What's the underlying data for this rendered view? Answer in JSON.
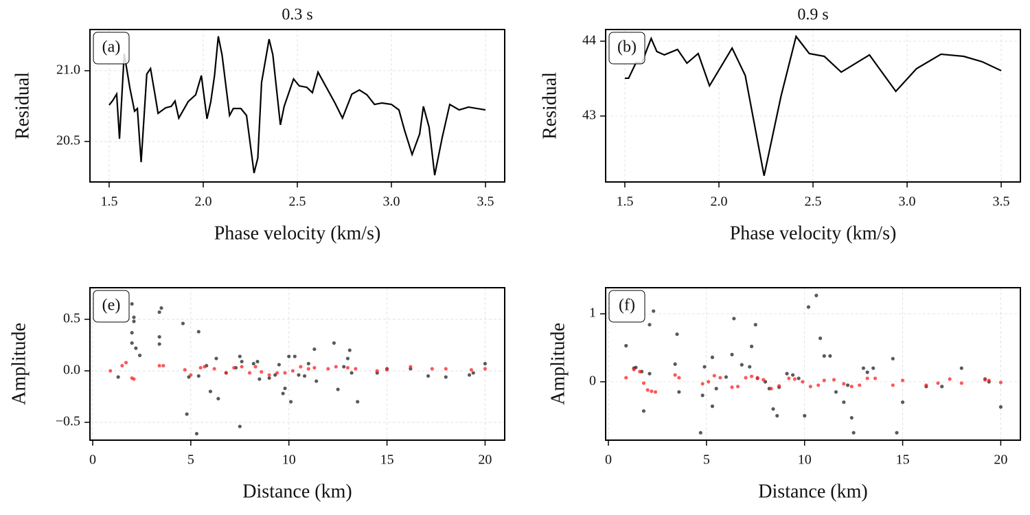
{
  "chart_data": [
    {
      "type": "line",
      "title": "0.3 s",
      "annotation": "(a)",
      "xlabel": "Phase velocity (km/s)",
      "ylabel": "Residual",
      "color": "#000000",
      "grid": true,
      "xlim": [
        1.398,
        3.602
      ],
      "ylim": [
        20.214,
        21.291
      ],
      "xticks": [
        1.5,
        {
          "value": 2,
          "label": "2.0"
        },
        2.5,
        {
          "value": 3,
          "label": "3.0"
        },
        3.5
      ],
      "yticks": [
        20.5,
        {
          "value": 21,
          "label": "21.0"
        }
      ],
      "x": [
        1.5,
        1.52,
        1.54,
        1.555,
        1.58,
        1.61,
        1.635,
        1.65,
        1.67,
        1.7,
        1.72,
        1.745,
        1.76,
        1.8,
        1.83,
        1.85,
        1.87,
        1.92,
        1.96,
        1.99,
        2.02,
        2.04,
        2.06,
        2.08,
        2.1,
        2.14,
        2.16,
        2.2,
        2.23,
        2.27,
        2.29,
        2.31,
        2.35,
        2.37,
        2.41,
        2.43,
        2.48,
        2.51,
        2.55,
        2.58,
        2.61,
        2.65,
        2.7,
        2.74,
        2.79,
        2.83,
        2.87,
        2.91,
        2.95,
        3.0,
        3.04,
        3.07,
        3.11,
        3.15,
        3.17,
        3.2,
        3.23,
        3.27,
        3.31,
        3.36,
        3.41,
        3.5
      ],
      "values": [
        20.757,
        20.791,
        20.835,
        20.519,
        21.121,
        20.879,
        20.714,
        20.733,
        20.354,
        20.976,
        21.015,
        20.82,
        20.699,
        20.738,
        20.748,
        20.786,
        20.665,
        20.782,
        20.83,
        20.966,
        20.66,
        20.78,
        20.966,
        21.243,
        21.112,
        20.684,
        20.733,
        20.733,
        20.684,
        20.277,
        20.383,
        20.917,
        21.223,
        21.112,
        20.617,
        20.748,
        20.942,
        20.893,
        20.883,
        20.845,
        20.99,
        20.893,
        20.772,
        20.665,
        20.835,
        20.864,
        20.83,
        20.762,
        20.772,
        20.762,
        20.723,
        20.578,
        20.408,
        20.553,
        20.748,
        20.602,
        20.262,
        20.529,
        20.762,
        20.723,
        20.743,
        20.723
      ]
    },
    {
      "type": "line",
      "title": "0.9 s",
      "annotation": "(b)",
      "xlabel": "Phase velocity (km/s)",
      "ylabel": "Residual",
      "color": "#000000",
      "grid": true,
      "xlim": [
        1.398,
        3.602
      ],
      "ylim": [
        42.119,
        44.156
      ],
      "xticks": [
        1.5,
        {
          "value": 2,
          "label": "2.0"
        },
        2.5,
        {
          "value": 3,
          "label": "3.0"
        },
        3.5
      ],
      "yticks": [
        43,
        44
      ],
      "x": [
        1.5,
        1.52,
        1.56,
        1.59,
        1.62,
        1.64,
        1.67,
        1.71,
        1.78,
        1.83,
        1.89,
        1.95,
        2.07,
        2.14,
        2.24,
        2.33,
        2.41,
        2.48,
        2.56,
        2.65,
        2.8,
        2.94,
        3.05,
        3.18,
        3.3,
        3.4,
        3.5
      ],
      "values": [
        43.505,
        43.505,
        43.716,
        43.706,
        43.908,
        44.037,
        43.862,
        43.817,
        43.89,
        43.706,
        43.835,
        43.404,
        43.908,
        43.541,
        42.202,
        43.266,
        44.064,
        43.835,
        43.798,
        43.587,
        43.817,
        43.33,
        43.633,
        43.826,
        43.798,
        43.725,
        43.606
      ]
    },
    {
      "type": "scatter",
      "annotation": "(e)",
      "xlabel": "Distance (km)",
      "ylabel": "Amplitude",
      "grid": true,
      "xlim": [
        -0.14,
        21.0
      ],
      "ylim": [
        -0.673,
        0.807
      ],
      "xticks": [
        0,
        5,
        10,
        15,
        20
      ],
      "yticks": [
        {
          "value": -0.5,
          "label": "−0.5"
        },
        {
          "value": 0,
          "label": "0.0"
        },
        0.5
      ],
      "series": [
        {
          "color": "#222222",
          "x": [
            1.3,
            2.0,
            2.1,
            2.1,
            2.0,
            2.0,
            2.2,
            2.4,
            3.5,
            3.4,
            3.4,
            3.4,
            4.6,
            4.8,
            4.9,
            5.3,
            5.4,
            5.4,
            5.8,
            6.0,
            6.3,
            6.4,
            6.8,
            7.3,
            7.5,
            7.5,
            7.6,
            8.2,
            8.4,
            8.5,
            9.0,
            9.3,
            9.5,
            9.7,
            9.8,
            10.1,
            10.0,
            10.3,
            10.5,
            10.8,
            11.0,
            11.3,
            11.4,
            12.3,
            12.5,
            12.8,
            13.0,
            13.1,
            13.2,
            13.5,
            14.5,
            15.0,
            16.2,
            17.1,
            18.0,
            19.2,
            19.4,
            20.0
          ],
          "values": [
            -0.06,
            0.65,
            0.52,
            0.48,
            0.37,
            0.27,
            0.22,
            0.15,
            0.61,
            0.57,
            0.33,
            0.26,
            0.46,
            -0.42,
            -0.06,
            -0.61,
            0.38,
            -0.05,
            0.05,
            -0.2,
            0.12,
            -0.27,
            -0.02,
            0.03,
            0.14,
            -0.54,
            0.09,
            0.07,
            0.09,
            -0.08,
            -0.07,
            -0.04,
            0.06,
            -0.22,
            -0.17,
            -0.3,
            0.14,
            0.14,
            -0.04,
            -0.05,
            0.07,
            0.21,
            -0.1,
            0.27,
            -0.18,
            0.04,
            0.12,
            0.2,
            -0.02,
            -0.3,
            -0.02,
            0.02,
            0.02,
            -0.05,
            -0.06,
            -0.04,
            -0.02,
            0.07
          ]
        },
        {
          "color": "#ff2020",
          "x": [
            0.9,
            1.5,
            1.7,
            2.0,
            2.1,
            3.4,
            3.6,
            4.7,
            5.0,
            5.5,
            5.7,
            6.2,
            6.8,
            7.2,
            7.6,
            8.0,
            8.3,
            8.6,
            9.0,
            9.4,
            9.8,
            10.2,
            10.6,
            11.0,
            11.3,
            12.0,
            12.4,
            13.0,
            13.4,
            14.5,
            15.0,
            16.2,
            17.3,
            18.0,
            19.3,
            20.0
          ],
          "values": [
            0.0,
            0.05,
            0.08,
            -0.07,
            -0.08,
            0.05,
            0.05,
            0.01,
            -0.04,
            0.03,
            0.04,
            0.02,
            -0.02,
            0.03,
            0.04,
            -0.02,
            0.04,
            -0.01,
            -0.04,
            -0.02,
            -0.02,
            0.0,
            0.04,
            0.02,
            0.03,
            0.02,
            0.04,
            0.03,
            0.02,
            0.0,
            0.01,
            0.04,
            0.02,
            0.02,
            0.01,
            0.02
          ]
        }
      ]
    },
    {
      "type": "scatter",
      "annotation": "(f)",
      "xlabel": "Distance (km)",
      "ylabel": "Amplitude",
      "grid": true,
      "xlim": [
        -0.14,
        21.0
      ],
      "ylim": [
        -0.859,
        1.384
      ],
      "xticks": [
        0,
        5,
        10,
        15,
        20
      ],
      "yticks": [
        0,
        1
      ],
      "series": [
        {
          "color": "#222222",
          "x": [
            0.9,
            1.3,
            1.4,
            1.7,
            1.8,
            2.1,
            2.1,
            2.3,
            3.4,
            3.5,
            3.6,
            4.7,
            4.8,
            4.9,
            5.3,
            5.3,
            5.5,
            6.0,
            6.3,
            6.4,
            6.8,
            7.2,
            7.3,
            7.5,
            7.6,
            8.0,
            8.2,
            8.4,
            8.6,
            8.7,
            9.1,
            9.4,
            9.7,
            10.0,
            10.2,
            10.6,
            10.8,
            11.0,
            11.3,
            11.6,
            12.0,
            12.2,
            12.4,
            12.5,
            13.0,
            13.2,
            13.5,
            14.5,
            14.7,
            15.0,
            16.2,
            17.0,
            18.0,
            19.2,
            19.4,
            20.0
          ],
          "values": [
            0.53,
            0.2,
            0.21,
            0.15,
            -0.43,
            0.84,
            0.12,
            1.04,
            0.26,
            0.7,
            -0.15,
            -0.75,
            -0.2,
            0.22,
            0.36,
            -0.36,
            -0.1,
            0.07,
            0.4,
            0.93,
            0.25,
            0.22,
            0.52,
            0.84,
            0.05,
            0.0,
            -0.1,
            -0.4,
            -0.5,
            -0.08,
            0.12,
            0.1,
            0.05,
            -0.5,
            1.1,
            1.27,
            0.64,
            0.38,
            0.38,
            -0.15,
            -0.3,
            -0.05,
            -0.53,
            -0.75,
            0.2,
            0.14,
            0.2,
            0.34,
            -0.75,
            -0.3,
            -0.07,
            -0.07,
            0.2,
            0.04,
            0.0,
            -0.37
          ]
        },
        {
          "color": "#ff2020",
          "x": [
            0.9,
            1.3,
            1.6,
            1.8,
            2.0,
            2.2,
            2.4,
            3.4,
            3.6,
            4.8,
            5.1,
            5.4,
            5.7,
            6.3,
            6.6,
            7.0,
            7.3,
            7.6,
            7.9,
            8.3,
            8.7,
            9.2,
            9.5,
            9.9,
            10.3,
            10.7,
            11.0,
            11.5,
            12.0,
            12.4,
            12.8,
            13.2,
            13.6,
            14.5,
            15.0,
            16.2,
            16.8,
            17.4,
            18.0,
            19.2,
            19.4,
            20.0
          ],
          "values": [
            0.06,
            0.18,
            0.15,
            -0.02,
            -0.12,
            -0.14,
            -0.15,
            0.1,
            0.06,
            -0.03,
            0.0,
            0.09,
            0.06,
            -0.08,
            -0.07,
            0.06,
            0.08,
            0.06,
            0.03,
            -0.1,
            -0.06,
            0.05,
            0.04,
            0.0,
            -0.07,
            -0.05,
            0.02,
            0.03,
            -0.03,
            -0.07,
            -0.05,
            0.05,
            0.05,
            -0.05,
            0.02,
            -0.05,
            -0.02,
            0.04,
            -0.02,
            0.03,
            0.02,
            -0.01
          ]
        }
      ]
    }
  ]
}
